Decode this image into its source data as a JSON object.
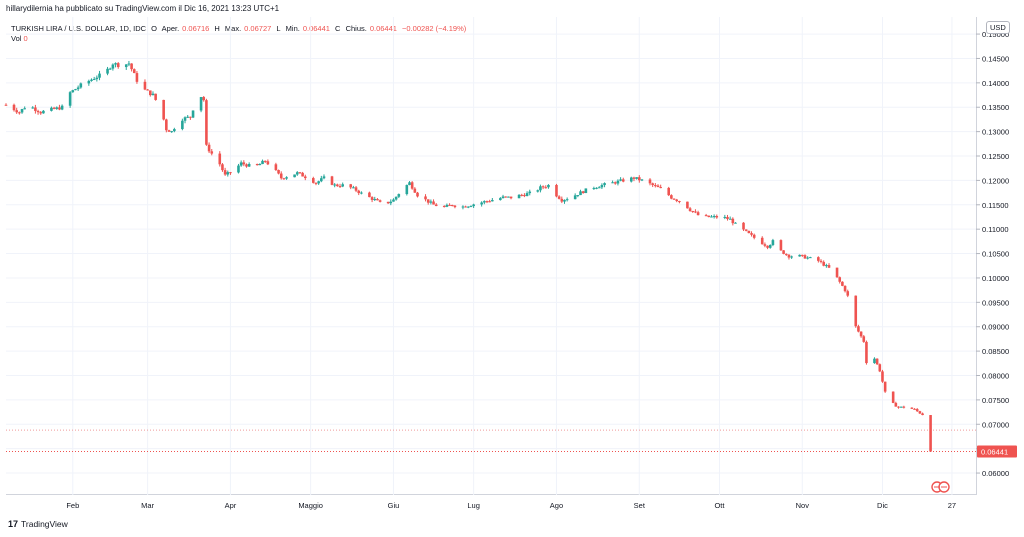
{
  "header": {
    "published_line": "hillarydilernia ha pubblicato su TradingView.com il Dic 16, 2021 13:23 UTC+1"
  },
  "legend": {
    "symbol": "TURKISH LIRA / U.S. DOLLAR, 1D, IDC",
    "open_label": "O",
    "open_text": "Aper.",
    "open_value": "0.06716",
    "high_label": "H",
    "high_text": "Max.",
    "high_value": "0.06727",
    "low_label": "L",
    "low_text": "Min.",
    "low_value": "0.06441",
    "close_label": "C",
    "close_text": "Chius.",
    "close_value": "0.06441",
    "change_value": "−0.00282 (−4.19%)",
    "vol_label": "Vol",
    "vol_value": "0"
  },
  "currency_button": "USD",
  "last_price_label": "0.06441",
  "brand": {
    "logo": "17",
    "name": "TradingView"
  },
  "colors": {
    "up": "#26a69a",
    "down": "#ef5350",
    "grid": "#f0f3fa",
    "axis_text": "#131722",
    "last_price": "#ef5350",
    "ref_line": "#ef9a9a"
  },
  "chart_data": {
    "type": "candlestick",
    "ylim": [
      0.0555,
      0.1535
    ],
    "y_scale": "linear",
    "y_ticks": [
      "0.06000",
      "0.06500",
      "0.07000",
      "0.07500",
      "0.08000",
      "0.08500",
      "0.09000",
      "0.09500",
      "0.10000",
      "0.10500",
      "0.11000",
      "0.11500",
      "0.12000",
      "0.12500",
      "0.13000",
      "0.13500",
      "0.14000",
      "0.14500",
      "0.15000"
    ],
    "x_ticks": [
      {
        "label": "Feb",
        "day": 22
      },
      {
        "label": "Mar",
        "day": 50
      },
      {
        "label": "Apr",
        "day": 81
      },
      {
        "label": "Maggio",
        "day": 111
      },
      {
        "label": "Giu",
        "day": 142
      },
      {
        "label": "Lug",
        "day": 172
      },
      {
        "label": "Ago",
        "day": 203
      },
      {
        "label": "Set",
        "day": 234
      },
      {
        "label": "Ott",
        "day": 264
      },
      {
        "label": "Nov",
        "day": 295
      },
      {
        "label": "Dic",
        "day": 325
      },
      {
        "label": "27",
        "day": 351
      }
    ],
    "x_range_days": [
      -3,
      360
    ],
    "last_price": 0.06441,
    "reference_line": 0.0688,
    "grid": true,
    "anchors": [
      [
        -3,
        0.1355
      ],
      [
        2,
        0.134
      ],
      [
        5,
        0.1355
      ],
      [
        10,
        0.134
      ],
      [
        14,
        0.1345
      ],
      [
        18,
        0.135
      ],
      [
        21,
        0.138
      ],
      [
        25,
        0.1395
      ],
      [
        30,
        0.141
      ],
      [
        34,
        0.142
      ],
      [
        37,
        0.144
      ],
      [
        40,
        0.1435
      ],
      [
        43,
        0.144
      ],
      [
        46,
        0.1405
      ],
      [
        49,
        0.1385
      ],
      [
        52,
        0.1375
      ],
      [
        55,
        0.1345
      ],
      [
        57,
        0.1305
      ],
      [
        59,
        0.13
      ],
      [
        62,
        0.1325
      ],
      [
        66,
        0.133
      ],
      [
        69,
        0.138
      ],
      [
        71,
        0.1365
      ],
      [
        72,
        0.127
      ],
      [
        74,
        0.1255
      ],
      [
        76,
        0.1245
      ],
      [
        79,
        0.121
      ],
      [
        82,
        0.122
      ],
      [
        85,
        0.1235
      ],
      [
        88,
        0.123
      ],
      [
        91,
        0.123
      ],
      [
        94,
        0.124
      ],
      [
        97,
        0.1225
      ],
      [
        100,
        0.1205
      ],
      [
        103,
        0.121
      ],
      [
        106,
        0.1215
      ],
      [
        110,
        0.1205
      ],
      [
        113,
        0.1195
      ],
      [
        116,
        0.1205
      ],
      [
        120,
        0.119
      ],
      [
        124,
        0.119
      ],
      [
        128,
        0.118
      ],
      [
        131,
        0.117
      ],
      [
        135,
        0.116
      ],
      [
        138,
        0.115
      ],
      [
        142,
        0.116
      ],
      [
        145,
        0.118
      ],
      [
        148,
        0.1195
      ],
      [
        151,
        0.117
      ],
      [
        154,
        0.116
      ],
      [
        157,
        0.115
      ],
      [
        161,
        0.1145
      ],
      [
        164,
        0.115
      ],
      [
        167,
        0.1145
      ],
      [
        171,
        0.115
      ],
      [
        175,
        0.1155
      ],
      [
        179,
        0.116
      ],
      [
        183,
        0.1165
      ],
      [
        186,
        0.1165
      ],
      [
        190,
        0.117
      ],
      [
        194,
        0.1175
      ],
      [
        197,
        0.1185
      ],
      [
        200,
        0.119
      ],
      [
        202,
        0.1175
      ],
      [
        205,
        0.116
      ],
      [
        208,
        0.1165
      ],
      [
        212,
        0.1175
      ],
      [
        216,
        0.1185
      ],
      [
        220,
        0.119
      ],
      [
        224,
        0.1195
      ],
      [
        228,
        0.12
      ],
      [
        232,
        0.1205
      ],
      [
        235,
        0.12
      ],
      [
        239,
        0.119
      ],
      [
        243,
        0.118
      ],
      [
        246,
        0.1165
      ],
      [
        250,
        0.1155
      ],
      [
        253,
        0.114
      ],
      [
        257,
        0.1125
      ],
      [
        261,
        0.1125
      ],
      [
        265,
        0.1125
      ],
      [
        268,
        0.112
      ],
      [
        271,
        0.1105
      ],
      [
        275,
        0.109
      ],
      [
        279,
        0.1075
      ],
      [
        282,
        0.1065
      ],
      [
        285,
        0.108
      ],
      [
        287,
        0.1055
      ],
      [
        290,
        0.1045
      ],
      [
        294,
        0.1045
      ],
      [
        298,
        0.104
      ],
      [
        301,
        0.1035
      ],
      [
        305,
        0.102
      ],
      [
        308,
        0.1
      ],
      [
        311,
        0.0975
      ],
      [
        313,
        0.095
      ],
      [
        315,
        0.09
      ],
      [
        318,
        0.087
      ],
      [
        320,
        0.0785
      ],
      [
        322,
        0.0835
      ],
      [
        324,
        0.081
      ],
      [
        326,
        0.0765
      ],
      [
        328,
        0.0745
      ],
      [
        331,
        0.0735
      ],
      [
        334,
        0.0735
      ],
      [
        337,
        0.073
      ],
      [
        340,
        0.072
      ],
      [
        341,
        0.07
      ],
      [
        342,
        0.0672
      ],
      [
        343,
        0.0644
      ]
    ],
    "legend_entries": [
      "TURKISH LIRA / U.S. DOLLAR, 1D, IDC"
    ]
  }
}
